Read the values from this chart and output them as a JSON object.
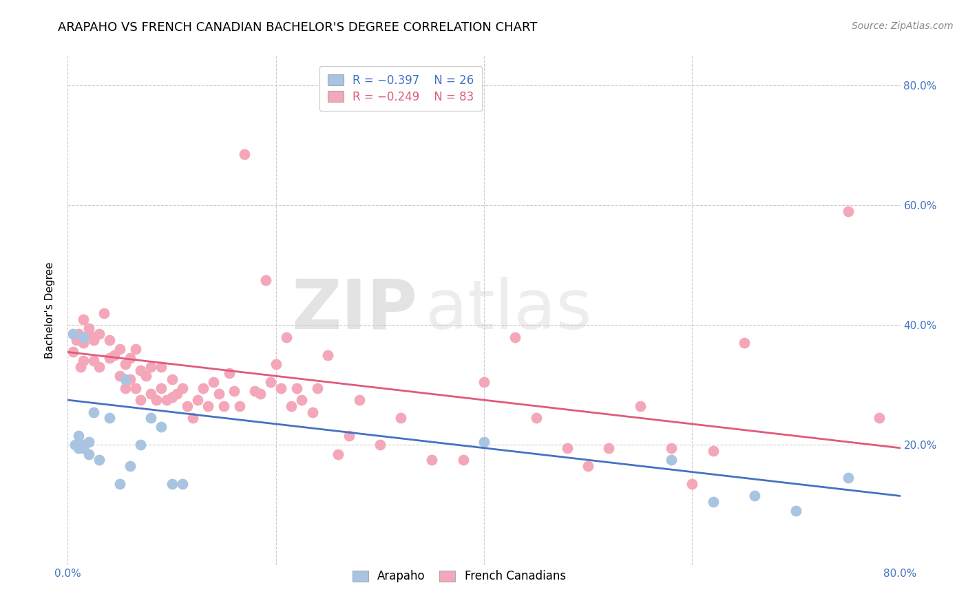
{
  "title": "ARAPAHO VS FRENCH CANADIAN BACHELOR'S DEGREE CORRELATION CHART",
  "source": "Source: ZipAtlas.com",
  "ylabel": "Bachelor's Degree",
  "xlim": [
    0.0,
    0.8
  ],
  "ylim": [
    0.0,
    0.85
  ],
  "ytick_positions": [
    0.0,
    0.2,
    0.4,
    0.6,
    0.8
  ],
  "xtick_positions": [
    0.0,
    0.2,
    0.4,
    0.6,
    0.8
  ],
  "watermark_line1": "ZIP",
  "watermark_line2": "atlas",
  "legend_label_colors": [
    "#4472c4",
    "#e05a7a"
  ],
  "arapaho_color": "#a8c4e0",
  "french_color": "#f4a7b9",
  "arapaho_line_color": "#4472c4",
  "french_line_color": "#e05a7a",
  "background_color": "#ffffff",
  "grid_color": "#cccccc",
  "arapaho_x": [
    0.005,
    0.007,
    0.01,
    0.01,
    0.015,
    0.015,
    0.015,
    0.02,
    0.02,
    0.025,
    0.03,
    0.04,
    0.05,
    0.055,
    0.06,
    0.07,
    0.08,
    0.09,
    0.1,
    0.11,
    0.4,
    0.58,
    0.62,
    0.66,
    0.7,
    0.75
  ],
  "arapaho_y": [
    0.385,
    0.2,
    0.195,
    0.215,
    0.195,
    0.38,
    0.2,
    0.205,
    0.185,
    0.255,
    0.175,
    0.245,
    0.135,
    0.31,
    0.165,
    0.2,
    0.245,
    0.23,
    0.135,
    0.135,
    0.205,
    0.175,
    0.105,
    0.115,
    0.09,
    0.145
  ],
  "french_x": [
    0.005,
    0.008,
    0.01,
    0.012,
    0.015,
    0.015,
    0.015,
    0.02,
    0.02,
    0.025,
    0.025,
    0.03,
    0.03,
    0.035,
    0.04,
    0.04,
    0.045,
    0.05,
    0.05,
    0.055,
    0.055,
    0.06,
    0.06,
    0.065,
    0.065,
    0.07,
    0.07,
    0.075,
    0.08,
    0.08,
    0.085,
    0.09,
    0.09,
    0.095,
    0.1,
    0.1,
    0.105,
    0.11,
    0.115,
    0.12,
    0.125,
    0.13,
    0.135,
    0.14,
    0.145,
    0.15,
    0.155,
    0.16,
    0.165,
    0.17,
    0.18,
    0.185,
    0.19,
    0.195,
    0.2,
    0.205,
    0.21,
    0.215,
    0.22,
    0.225,
    0.235,
    0.24,
    0.25,
    0.26,
    0.27,
    0.28,
    0.3,
    0.32,
    0.35,
    0.38,
    0.4,
    0.43,
    0.45,
    0.48,
    0.5,
    0.52,
    0.55,
    0.58,
    0.6,
    0.62,
    0.65,
    0.75,
    0.78
  ],
  "french_y": [
    0.355,
    0.375,
    0.385,
    0.33,
    0.41,
    0.37,
    0.34,
    0.385,
    0.395,
    0.34,
    0.375,
    0.33,
    0.385,
    0.42,
    0.345,
    0.375,
    0.35,
    0.36,
    0.315,
    0.335,
    0.295,
    0.31,
    0.345,
    0.295,
    0.36,
    0.275,
    0.325,
    0.315,
    0.285,
    0.33,
    0.275,
    0.295,
    0.33,
    0.275,
    0.28,
    0.31,
    0.285,
    0.295,
    0.265,
    0.245,
    0.275,
    0.295,
    0.265,
    0.305,
    0.285,
    0.265,
    0.32,
    0.29,
    0.265,
    0.685,
    0.29,
    0.285,
    0.475,
    0.305,
    0.335,
    0.295,
    0.38,
    0.265,
    0.295,
    0.275,
    0.255,
    0.295,
    0.35,
    0.185,
    0.215,
    0.275,
    0.2,
    0.245,
    0.175,
    0.175,
    0.305,
    0.38,
    0.245,
    0.195,
    0.165,
    0.195,
    0.265,
    0.195,
    0.135,
    0.19,
    0.37,
    0.59,
    0.245
  ],
  "arapaho_R": -0.397,
  "arapaho_N": 26,
  "french_R": -0.249,
  "french_N": 83,
  "title_fontsize": 13,
  "source_fontsize": 10,
  "axis_label_fontsize": 11,
  "tick_fontsize": 11
}
